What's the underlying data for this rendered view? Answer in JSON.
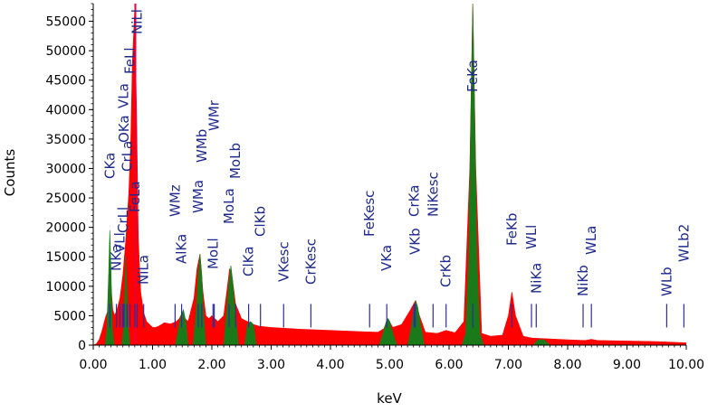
{
  "chart_data": {
    "type": "area",
    "xlabel": "keV",
    "ylabel": "Counts",
    "xlim": [
      0,
      10
    ],
    "ylim": [
      0,
      58000
    ],
    "x_ticks": [
      "0.00",
      "1.00",
      "2.00",
      "3.00",
      "4.00",
      "5.00",
      "6.00",
      "7.00",
      "8.00",
      "9.00",
      "10.00"
    ],
    "y_ticks": [
      "0",
      "5000",
      "10000",
      "15000",
      "20000",
      "25000",
      "30000",
      "35000",
      "40000",
      "45000",
      "50000",
      "55000"
    ],
    "grid": false,
    "colors": {
      "spectrum": "#ff0000",
      "identified": "#1a7a1a",
      "labels": "#1f2a8c",
      "marker": "#2d2d9e",
      "cursor": "#e8003a"
    },
    "series": [
      {
        "role": "spectrum",
        "x": [
          0.0,
          0.05,
          0.1,
          0.15,
          0.2,
          0.25,
          0.28,
          0.3,
          0.33,
          0.36,
          0.4,
          0.45,
          0.5,
          0.55,
          0.6,
          0.63,
          0.66,
          0.7,
          0.73,
          0.76,
          0.8,
          0.85,
          0.9,
          0.95,
          1.0,
          1.05,
          1.1,
          1.15,
          1.2,
          1.3,
          1.4,
          1.45,
          1.5,
          1.55,
          1.6,
          1.7,
          1.75,
          1.8,
          1.85,
          1.9,
          1.95,
          2.0,
          2.05,
          2.1,
          2.2,
          2.25,
          2.3,
          2.35,
          2.4,
          2.5,
          2.6,
          2.7,
          2.8,
          3.0,
          3.5,
          4.0,
          4.5,
          4.8,
          4.9,
          4.97,
          5.05,
          5.2,
          5.35,
          5.43,
          5.5,
          5.6,
          5.8,
          5.95,
          6.1,
          6.25,
          6.35,
          6.4,
          6.45,
          6.55,
          6.7,
          6.9,
          7.0,
          7.06,
          7.12,
          7.25,
          7.4,
          7.6,
          8.0,
          8.3,
          8.4,
          8.5,
          9.0,
          9.5,
          10.0
        ],
        "y": [
          0,
          200,
          900,
          2500,
          4500,
          6000,
          8000,
          10000,
          6000,
          5000,
          6000,
          8000,
          12000,
          18000,
          26000,
          34000,
          48000,
          57000,
          40000,
          18000,
          9000,
          5500,
          4000,
          3500,
          3000,
          3000,
          3200,
          3500,
          3800,
          3600,
          4000,
          4500,
          5500,
          4500,
          4000,
          8000,
          13000,
          15500,
          9000,
          5000,
          4500,
          5000,
          4500,
          4000,
          5000,
          9000,
          13000,
          11000,
          7000,
          4500,
          4000,
          3500,
          3200,
          3000,
          2700,
          2500,
          2300,
          2200,
          2800,
          4500,
          3000,
          3500,
          6000,
          7500,
          5000,
          2200,
          2000,
          2500,
          2100,
          4000,
          30000,
          58000,
          30000,
          2000,
          1500,
          1700,
          5000,
          9000,
          5000,
          1500,
          1200,
          1100,
          900,
          800,
          1000,
          800,
          700,
          600,
          400
        ]
      },
      {
        "role": "identified",
        "segments": [
          {
            "x": [
              0.2,
              0.23,
              0.26,
              0.28,
              0.3,
              0.32,
              0.35
            ],
            "y": [
              0,
              3000,
              12000,
              19500,
              12000,
              3000,
              0
            ]
          },
          {
            "x": [
              0.48,
              0.51,
              0.53,
              0.55,
              0.57,
              0.59,
              0.62
            ],
            "y": [
              0,
              3000,
              9000,
              15000,
              9000,
              3000,
              0
            ]
          },
          {
            "x": [
              1.38,
              1.43,
              1.48,
              1.52,
              1.56,
              1.6
            ],
            "y": [
              0,
              2500,
              5000,
              6000,
              4000,
              0
            ]
          },
          {
            "x": [
              1.68,
              1.73,
              1.77,
              1.8,
              1.83,
              1.86,
              1.9
            ],
            "y": [
              0,
              5000,
              12000,
              15500,
              12000,
              5000,
              0
            ]
          },
          {
            "x": [
              2.2,
              2.25,
              2.29,
              2.32,
              2.35,
              2.39,
              2.45
            ],
            "y": [
              0,
              6000,
              11000,
              13500,
              11000,
              6000,
              0
            ]
          },
          {
            "x": [
              2.55,
              2.6,
              2.65,
              2.7,
              2.75
            ],
            "y": [
              0,
              3500,
              4000,
              3500,
              0
            ]
          },
          {
            "x": [
              4.82,
              4.88,
              4.94,
              4.97,
              5.0,
              5.06,
              5.12
            ],
            "y": [
              0,
              1800,
              4000,
              4500,
              4000,
              1800,
              0
            ]
          },
          {
            "x": [
              5.3,
              5.36,
              5.41,
              5.44,
              5.47,
              5.53,
              5.58
            ],
            "y": [
              0,
              3000,
              6500,
              7500,
              6500,
              3000,
              0
            ]
          },
          {
            "x": [
              6.22,
              6.28,
              6.33,
              6.37,
              6.4,
              6.43,
              6.47,
              6.52,
              6.58
            ],
            "y": [
              0,
              2000,
              15000,
              40000,
              58000,
              40000,
              15000,
              2000,
              0
            ]
          },
          {
            "x": [
              7.42,
              7.5,
              7.6,
              7.7
            ],
            "y": [
              0,
              900,
              900,
              0
            ]
          }
        ]
      }
    ],
    "annotations": [
      {
        "label": "CKa",
        "x": 0.28
      },
      {
        "label": "NKa",
        "x": 0.39
      },
      {
        "label": "VLl",
        "x": 0.45
      },
      {
        "label": "CrLl",
        "x": 0.5
      },
      {
        "label": "OKa",
        "x": 0.52
      },
      {
        "label": "CrLa",
        "x": 0.57
      },
      {
        "label": "VLa",
        "x": 0.51
      },
      {
        "label": "FeLa",
        "x": 0.7
      },
      {
        "label": "FeLl",
        "x": 0.62
      },
      {
        "label": "NiLl",
        "x": 0.74
      },
      {
        "label": "NiLa",
        "x": 0.85
      },
      {
        "label": "AlKa",
        "x": 1.49
      },
      {
        "label": "WMz",
        "x": 1.38
      },
      {
        "label": "WMa",
        "x": 1.77
      },
      {
        "label": "WMb",
        "x": 1.83
      },
      {
        "label": "WMr",
        "x": 2.04
      },
      {
        "label": "MoLl",
        "x": 2.02
      },
      {
        "label": "MoLa",
        "x": 2.29
      },
      {
        "label": "MoLb",
        "x": 2.4
      },
      {
        "label": "ClKa",
        "x": 2.62
      },
      {
        "label": "ClKb",
        "x": 2.82
      },
      {
        "label": "VKesc",
        "x": 3.21
      },
      {
        "label": "CrKesc",
        "x": 3.67
      },
      {
        "label": "FeKesc",
        "x": 4.66
      },
      {
        "label": "VKa",
        "x": 4.95
      },
      {
        "label": "CrKa",
        "x": 5.41
      },
      {
        "label": "VKb",
        "x": 5.43
      },
      {
        "label": "NiKesc",
        "x": 5.73
      },
      {
        "label": "CrKb",
        "x": 5.95
      },
      {
        "label": "FeKa",
        "x": 6.4
      },
      {
        "label": "FeKb",
        "x": 7.06
      },
      {
        "label": "NiKa",
        "x": 7.47
      },
      {
        "label": "WLl",
        "x": 7.39
      },
      {
        "label": "NiKb",
        "x": 8.26
      },
      {
        "label": "WLa",
        "x": 8.4
      },
      {
        "label": "WLb",
        "x": 9.67
      },
      {
        "label": "WLb2",
        "x": 9.96
      }
    ],
    "cursor_x": 0.71
  }
}
